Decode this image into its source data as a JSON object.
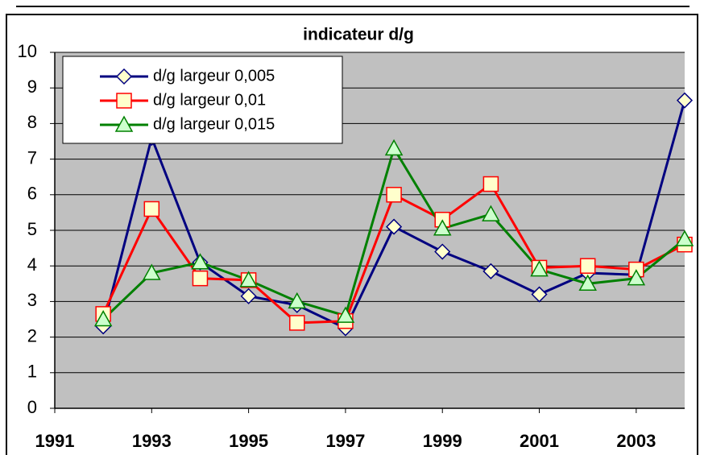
{
  "chart_data": {
    "type": "line",
    "title": "indicateur d/g",
    "x": [
      1992,
      1993,
      1994,
      1995,
      1996,
      1997,
      1998,
      1999,
      2000,
      2001,
      2002,
      2003,
      2004
    ],
    "series": [
      {
        "name": "d/g largeur 0,005",
        "color": "#000080",
        "marker": "diamond",
        "values": [
          2.3,
          7.6,
          4.1,
          3.15,
          2.9,
          2.25,
          5.1,
          4.4,
          3.85,
          3.2,
          3.8,
          3.75,
          8.65
        ]
      },
      {
        "name": "d/g largeur 0,01",
        "color": "#ff0000",
        "marker": "square",
        "values": [
          2.65,
          5.6,
          3.65,
          3.6,
          2.4,
          2.45,
          6.0,
          5.3,
          6.3,
          3.95,
          4.0,
          3.9,
          4.6
        ]
      },
      {
        "name": "d/g largeur 0,015",
        "color": "#008000",
        "marker": "triangle",
        "values": [
          2.5,
          3.8,
          4.1,
          3.6,
          3.0,
          2.6,
          7.3,
          5.05,
          5.45,
          3.9,
          3.5,
          3.65,
          4.75
        ]
      }
    ],
    "xlim": [
      1991,
      2004
    ],
    "xticks": [
      1991,
      1993,
      1995,
      1997,
      1999,
      2001,
      2003
    ],
    "ylim": [
      0,
      10
    ],
    "yticks": [
      0,
      1,
      2,
      3,
      4,
      5,
      6,
      7,
      8,
      9,
      10
    ],
    "grid": true,
    "legend": "upper left"
  }
}
